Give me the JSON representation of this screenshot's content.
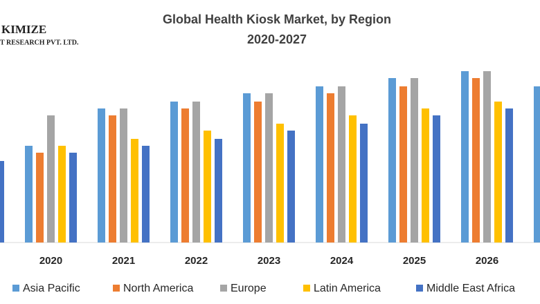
{
  "logo": {
    "line1": "KIMIZE",
    "line2": "T RESEARCH PVT. LTD."
  },
  "chart_data": {
    "type": "bar",
    "title": "Global Health Kiosk Market, by Region",
    "subtitle": "2020-2027",
    "categories": [
      null,
      "2020",
      "2021",
      "2022",
      "2023",
      "2024",
      "2025",
      "2026",
      null
    ],
    "series": [
      {
        "name": "Asia Pacific",
        "color": "#5b9bd5",
        "values": [
          null,
          14.0,
          19.4,
          20.4,
          21.6,
          22.6,
          23.8,
          24.8,
          22.6
        ]
      },
      {
        "name": "North America",
        "color": "#ed7d31",
        "values": [
          null,
          13.0,
          18.4,
          19.4,
          20.4,
          21.6,
          22.6,
          23.8,
          null
        ]
      },
      {
        "name": "Europe",
        "color": "#a5a5a5",
        "values": [
          null,
          18.4,
          19.4,
          20.4,
          21.6,
          22.6,
          23.8,
          24.8,
          null
        ]
      },
      {
        "name": "Latin America",
        "color": "#ffc000",
        "values": [
          null,
          14.0,
          15.0,
          16.2,
          17.2,
          18.4,
          19.4,
          20.4,
          null
        ]
      },
      {
        "name": "Middle East Africa",
        "color": "#4472c4",
        "values": [
          11.8,
          13.0,
          14.0,
          15.0,
          16.2,
          17.2,
          18.4,
          19.4,
          null
        ]
      }
    ]
  }
}
